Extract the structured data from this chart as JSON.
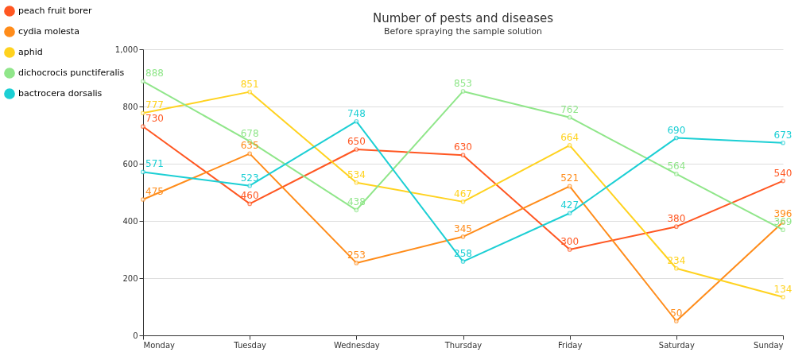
{
  "chart_data": {
    "type": "line",
    "title": "Number of pests and diseases",
    "subtitle": "Before spraying the sample solution",
    "categories": [
      "Monday",
      "Tuesday",
      "Wednesday",
      "Thursday",
      "Friday",
      "Saturday",
      "Sunday"
    ],
    "series": [
      {
        "name": "peach fruit borer",
        "color": "#ff5722",
        "values": [
          730,
          460,
          650,
          630,
          300,
          380,
          540
        ]
      },
      {
        "name": "cydia molesta",
        "color": "#ff8c1a",
        "values": [
          475,
          635,
          253,
          345,
          521,
          50,
          396
        ]
      },
      {
        "name": "aphid",
        "color": "#ffd21f",
        "values": [
          777,
          851,
          534,
          467,
          664,
          234,
          134
        ]
      },
      {
        "name": "dichocrocis punctiferalis",
        "color": "#90e68a",
        "values": [
          888,
          678,
          438,
          853,
          762,
          564,
          369
        ]
      },
      {
        "name": "bactrocera dorsalis",
        "color": "#1ccfd4",
        "values": [
          571,
          523,
          748,
          258,
          427,
          690,
          673
        ]
      }
    ],
    "ylim": [
      0,
      1000
    ],
    "yticks": [
      0,
      200,
      400,
      600,
      800,
      {
        "value": 1000,
        "label": "1,000"
      }
    ],
    "grid": "y",
    "legend": "top left",
    "marker": "circle",
    "line_style": "solid",
    "data_labels": true
  }
}
